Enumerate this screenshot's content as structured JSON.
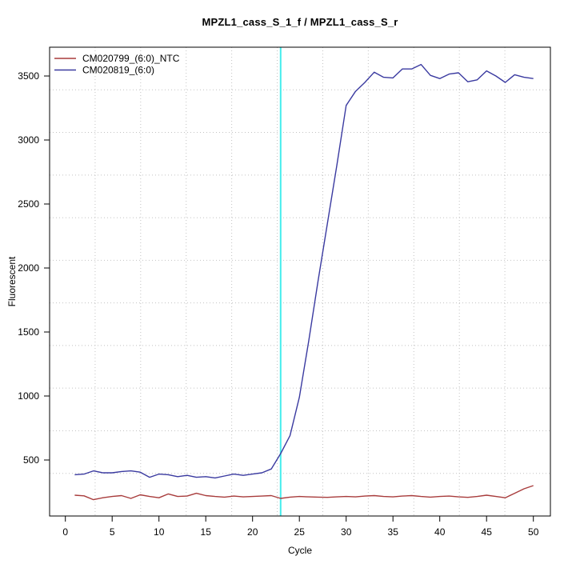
{
  "figure": {
    "title": "MPZL1_cass_S_1_f / MPZL1_cass_S_r",
    "xlabel": "Cycle",
    "ylabel": "Fluorescent"
  },
  "chart_data": {
    "type": "line",
    "title": "MPZL1_cass_S_1_f / MPZL1_cass_S_r",
    "xlabel": "Cycle",
    "ylabel": "Fluorescent",
    "xlim": [
      -1.7,
      51.8
    ],
    "ylim": [
      62,
      3725
    ],
    "x_ticks": [
      0,
      5,
      10,
      15,
      20,
      25,
      30,
      35,
      40,
      45,
      50
    ],
    "y_ticks": [
      500,
      1000,
      1500,
      2000,
      2500,
      3000,
      3500
    ],
    "grid": {
      "visible": true,
      "nx": 11,
      "ny": 11,
      "style": "dotted",
      "color": "#c2c2c2"
    },
    "threshold_line": {
      "x": 23,
      "color": "#44eded",
      "orientation": "vertical"
    },
    "legend_position": "top-left",
    "x": [
      1,
      2,
      3,
      4,
      5,
      6,
      7,
      8,
      9,
      10,
      11,
      12,
      13,
      14,
      15,
      16,
      17,
      18,
      19,
      20,
      21,
      22,
      23,
      24,
      25,
      26,
      27,
      28,
      29,
      30,
      31,
      32,
      33,
      34,
      35,
      36,
      37,
      38,
      39,
      40,
      41,
      42,
      43,
      44,
      45,
      46,
      47,
      48,
      49,
      50
    ],
    "series": [
      {
        "name": "CM020799_(6:0)_NTC",
        "color": "#a83c3c",
        "values": [
          225,
          220,
          190,
          205,
          215,
          222,
          200,
          228,
          215,
          205,
          235,
          215,
          218,
          240,
          222,
          215,
          210,
          218,
          212,
          215,
          218,
          222,
          200,
          210,
          215,
          212,
          210,
          208,
          212,
          215,
          212,
          218,
          222,
          215,
          212,
          218,
          222,
          215,
          210,
          215,
          218,
          212,
          208,
          215,
          225,
          215,
          205,
          240,
          275,
          300
        ]
      },
      {
        "name": "CM020819_(6:0)",
        "color": "#3a3aa0",
        "values": [
          385,
          390,
          415,
          400,
          400,
          410,
          415,
          405,
          365,
          390,
          385,
          370,
          380,
          365,
          370,
          360,
          375,
          390,
          380,
          390,
          400,
          430,
          550,
          690,
          990,
          1430,
          1900,
          2350,
          2800,
          3270,
          3380,
          3450,
          3530,
          3490,
          3485,
          3555,
          3555,
          3590,
          3505,
          3480,
          3515,
          3525,
          3455,
          3470,
          3540,
          3500,
          3450,
          3510,
          3490,
          3480
        ]
      }
    ]
  }
}
